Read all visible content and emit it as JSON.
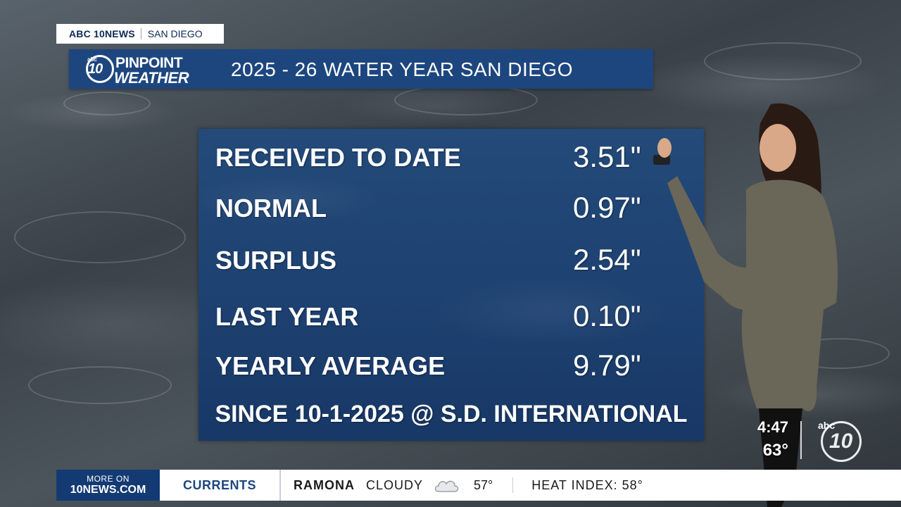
{
  "bug": {
    "brand": "ABC 10NEWS",
    "city": "SAN DIEGO"
  },
  "logo": {
    "abc": "abc",
    "number": "10",
    "line1": "PINPOINT",
    "line2": "WEATHER"
  },
  "title": "2025 - 26 WATER YEAR SAN DIEGO",
  "panel": {
    "rows": [
      {
        "label": "RECEIVED TO DATE",
        "value": "3.51\""
      },
      {
        "label": "NORMAL",
        "value": "0.97\""
      },
      {
        "label": "SURPLUS",
        "value": "2.54\""
      },
      {
        "label": "LAST YEAR",
        "value": "0.10\""
      },
      {
        "label": "YEARLY AVERAGE",
        "value": "9.79\""
      }
    ],
    "since": "SINCE 10-1-2025 @ S.D. INTERNATIONAL"
  },
  "clock": {
    "time": "4:47",
    "temp": "63°"
  },
  "corner_logo": {
    "abc": "abc",
    "number": "10"
  },
  "ticker": {
    "more_line1": "MORE ON",
    "more_line2": "10NEWS.COM",
    "currents": "CURRENTS",
    "city": "RAMONA",
    "condition": "CLOUDY",
    "condition_icon": "cloud-icon",
    "temp": "57°",
    "heat_index": "HEAT INDEX: 58°"
  },
  "colors": {
    "title_bar": "#1d467f",
    "panel": "#1e4272",
    "ticker_accent": "#143a73"
  }
}
